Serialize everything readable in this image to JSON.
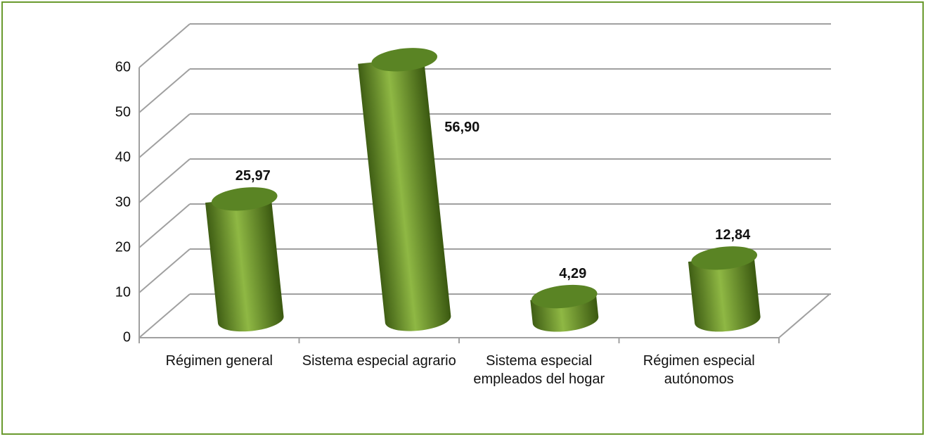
{
  "chart_data": {
    "type": "bar3d",
    "categories": [
      "Régimen general",
      "Sistema especial agrario",
      "Sistema especial empleados del hogar",
      "Régimen especial autónomos"
    ],
    "values": [
      25.97,
      56.9,
      4.29,
      12.84
    ],
    "value_labels": [
      "25,97",
      "56,90",
      "4,29",
      "12,84"
    ],
    "color": "#6f9a2c",
    "ylim": [
      0,
      60
    ],
    "yticks": [
      0,
      10,
      20,
      30,
      40,
      50,
      60
    ],
    "grid": true
  }
}
